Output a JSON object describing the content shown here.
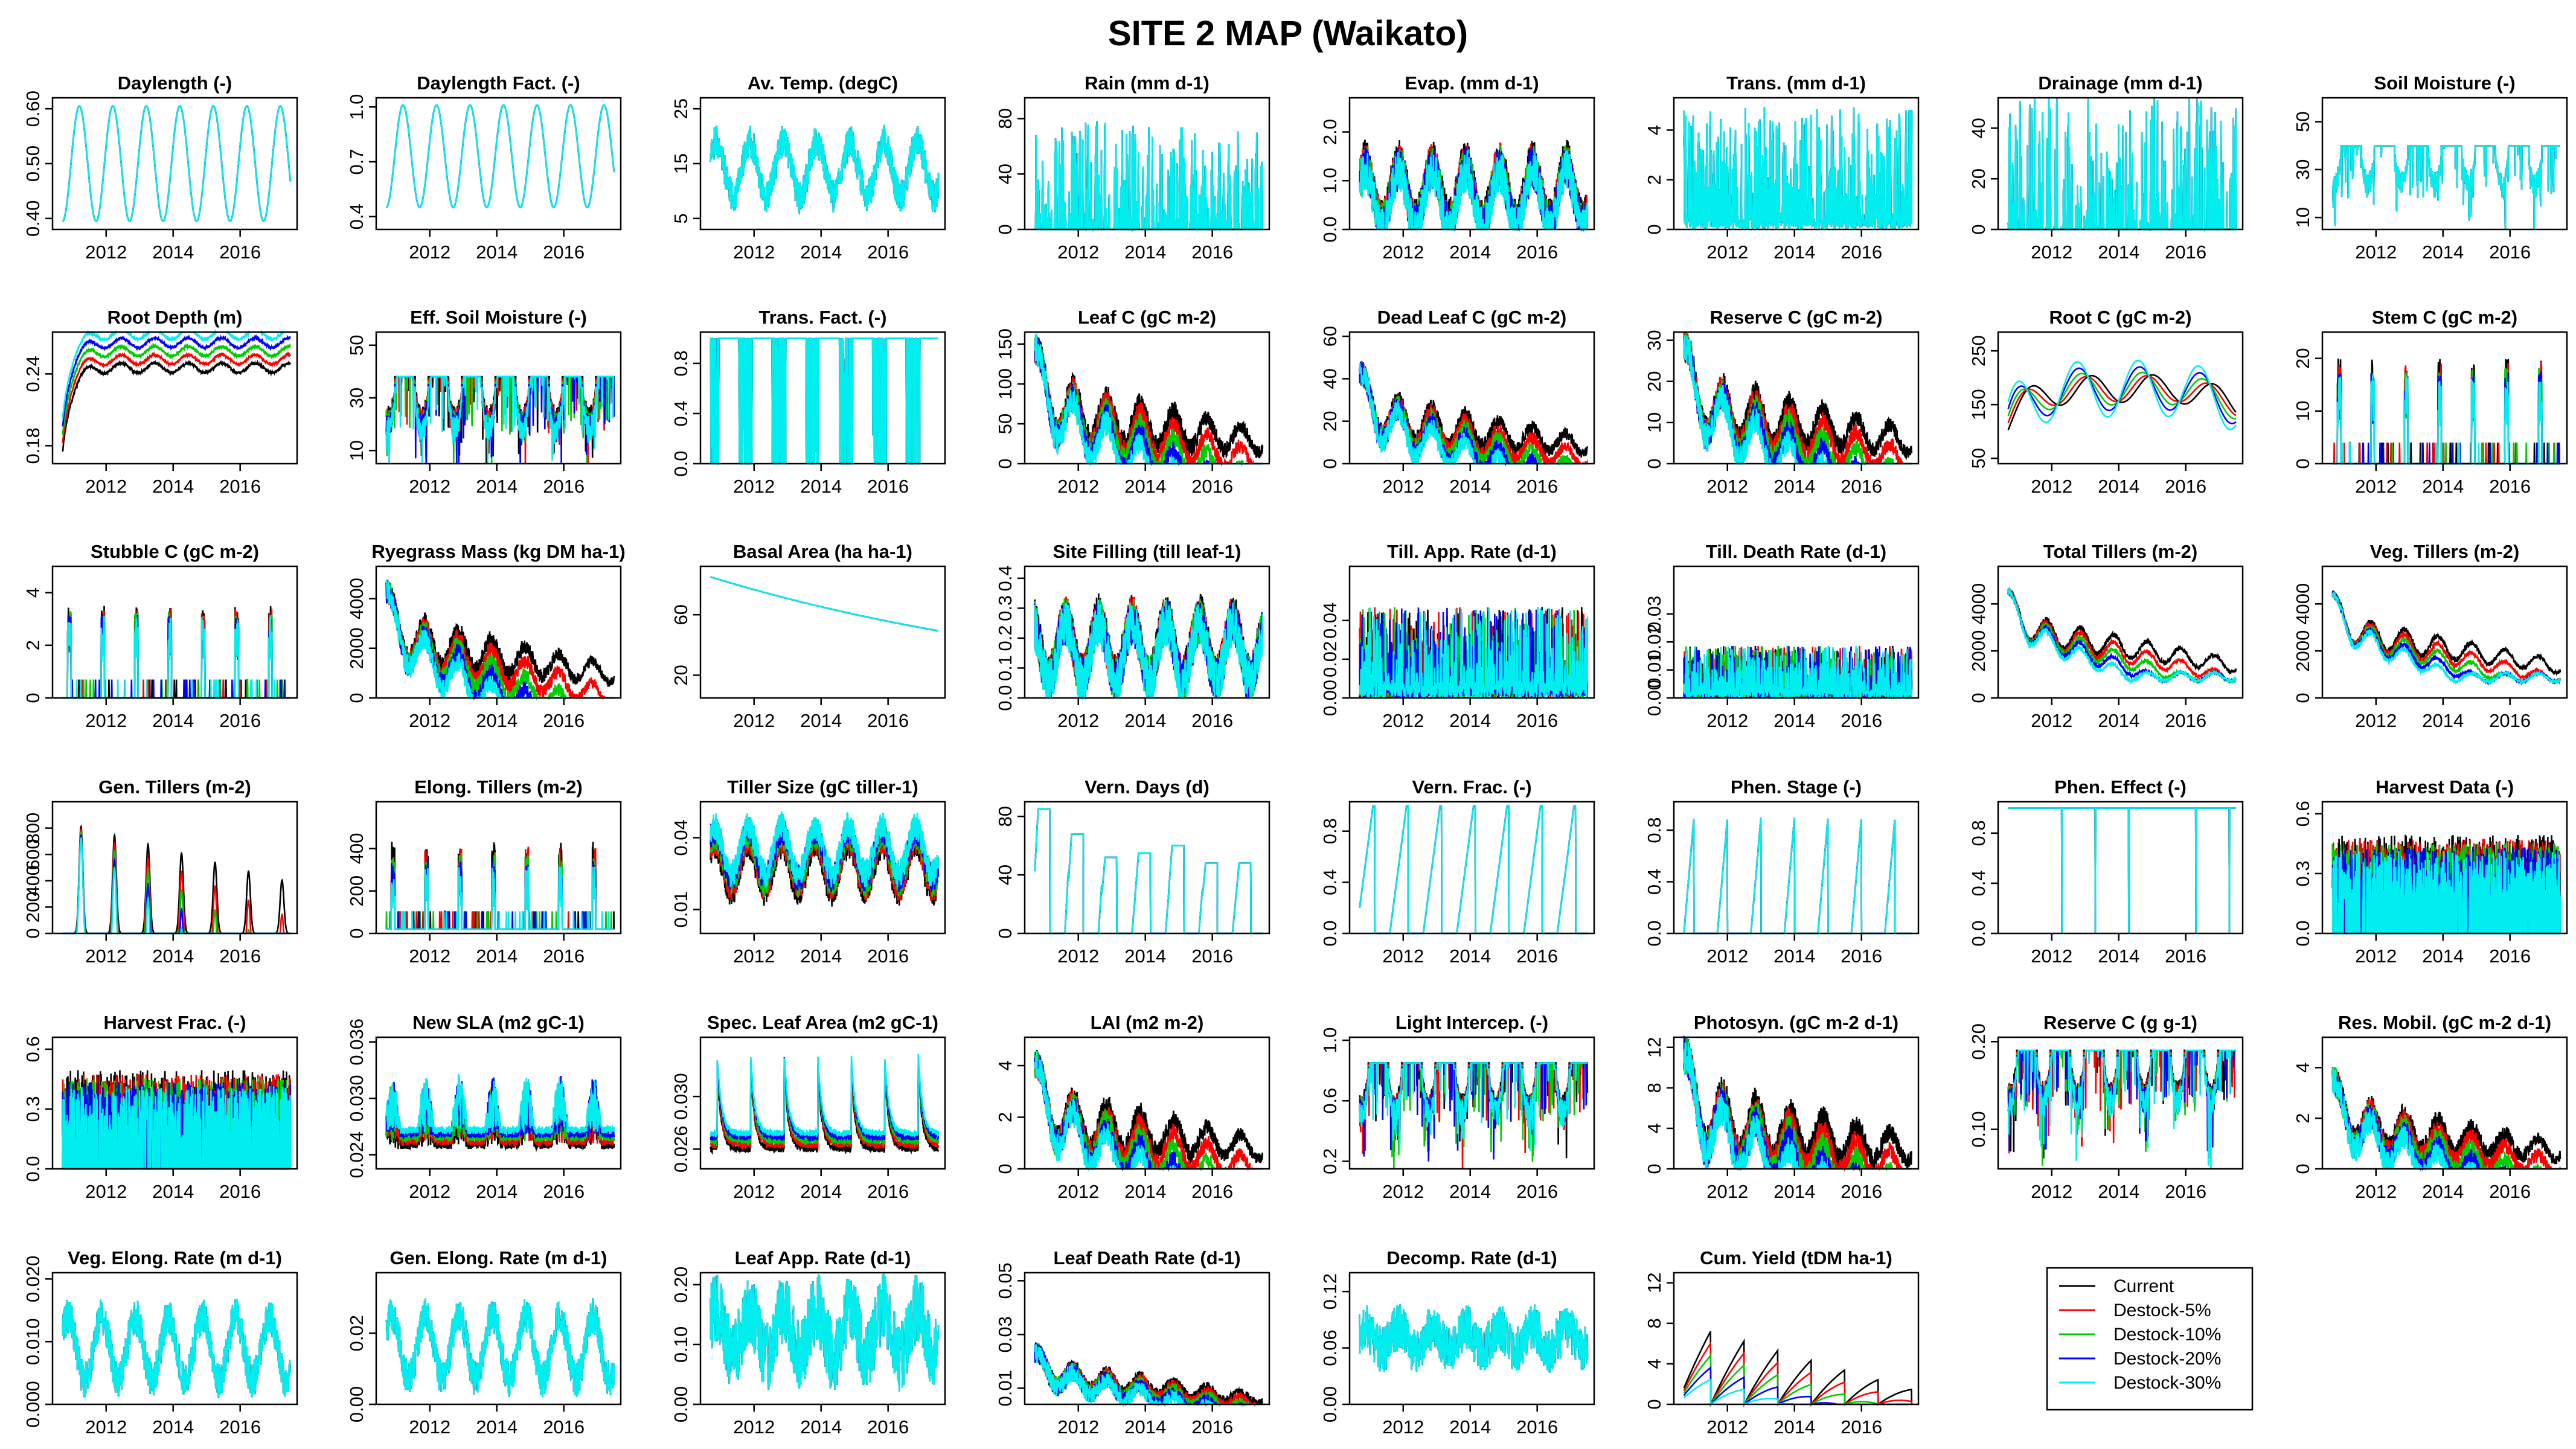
{
  "figure": {
    "title": "SITE 2 MAP (Waikato)",
    "x_range": [
      2010.4,
      2017.7
    ],
    "x_ticks": [
      "2012",
      "2014",
      "2016"
    ],
    "x_tick_values": [
      2012,
      2014,
      2016
    ]
  },
  "legend": {
    "placement": "bottom-right",
    "entries": [
      {
        "label": "Current",
        "color": "#000000"
      },
      {
        "label": "Destock-5%",
        "color": "#ff0000"
      },
      {
        "label": "Destock-10%",
        "color": "#00cd00"
      },
      {
        "label": "Destock-20%",
        "color": "#0000ff"
      },
      {
        "label": "Destock-30%",
        "color": "#00eeee"
      }
    ]
  },
  "chart_data": [
    {
      "type": "line",
      "title": "Daylength (-)",
      "ylim": [
        0.38,
        0.62
      ],
      "yticks": [
        "0.40",
        "0.50",
        "0.60"
      ],
      "ytick_values": [
        0.4,
        0.5,
        0.6
      ],
      "pattern": "seasonal",
      "base": 0.5,
      "amp": 0.105,
      "phase": 0,
      "spread": 0
    },
    {
      "type": "line",
      "title": "Daylength Fact. (-)",
      "ylim": [
        0.33,
        1.05
      ],
      "yticks": [
        "0.4",
        "0.7",
        "1.0"
      ],
      "ytick_values": [
        0.4,
        0.7,
        1.0
      ],
      "pattern": "seasonal",
      "base": 0.73,
      "amp": 0.28,
      "phase": 0,
      "spread": 0
    },
    {
      "type": "line",
      "title": "Av. Temp. (degC)",
      "ylim": [
        3,
        27
      ],
      "yticks": [
        "5",
        "15",
        "25"
      ],
      "ytick_values": [
        5,
        15,
        25
      ],
      "pattern": "seasonal_noisy",
      "base": 14,
      "amp": 5,
      "noise": 3,
      "phase": 0.5,
      "spread": 0
    },
    {
      "type": "line",
      "title": "Rain (mm d-1)",
      "ylim": [
        0,
        95
      ],
      "yticks": [
        "0",
        "40",
        "80"
      ],
      "ytick_values": [
        0,
        40,
        80
      ],
      "pattern": "spikes",
      "base": 0,
      "peak": 60,
      "density": 0.35,
      "spread": 0
    },
    {
      "type": "line",
      "title": "Evap. (mm d-1)",
      "ylim": [
        0,
        2.7
      ],
      "yticks": [
        "0.0",
        "1.0",
        "2.0"
      ],
      "ytick_values": [
        0,
        1,
        2
      ],
      "pattern": "seasonal_noisy",
      "base": 0.8,
      "amp": 0.6,
      "noise": 0.45,
      "phase": 0.5,
      "spread": 0.05
    },
    {
      "type": "line",
      "title": "Trans. (mm d-1)",
      "ylim": [
        0,
        5.3
      ],
      "yticks": [
        "0",
        "2",
        "4"
      ],
      "ytick_values": [
        0,
        2,
        4
      ],
      "pattern": "spikes",
      "base": 0.4,
      "peak": 3.5,
      "density": 0.45,
      "spread": 0
    },
    {
      "type": "line",
      "title": "Drainage (mm d-1)",
      "ylim": [
        0,
        52
      ],
      "yticks": [
        "0",
        "20",
        "40"
      ],
      "ytick_values": [
        0,
        20,
        40
      ],
      "pattern": "spikes",
      "base": 0,
      "peak": 42,
      "density": 0.25,
      "spread": 0
    },
    {
      "type": "line",
      "title": "Soil Moisture (-)",
      "ylim": [
        5,
        60
      ],
      "yticks": [
        "10",
        "30",
        "50"
      ],
      "ytick_values": [
        10,
        30,
        50
      ],
      "pattern": "dips",
      "base": 40,
      "dip": 22,
      "spread": 0
    },
    {
      "type": "line",
      "title": "Root Depth (m)",
      "ylim": [
        0.165,
        0.275
      ],
      "yticks": [
        "0.18",
        "0.24"
      ],
      "ytick_values": [
        0.18,
        0.24
      ],
      "pattern": "rootdepth",
      "base": 0.255,
      "spread": 0.007
    },
    {
      "type": "line",
      "title": "Eff. Soil Moisture (-)",
      "ylim": [
        5,
        55
      ],
      "yticks": [
        "10",
        "30",
        "50"
      ],
      "ytick_values": [
        10,
        30,
        50
      ],
      "pattern": "dips",
      "base": 38,
      "dip": 22,
      "spread": 1
    },
    {
      "type": "line",
      "title": "Trans. Fact. (-)",
      "ylim": [
        0,
        1.05
      ],
      "yticks": [
        "0.0",
        "0.4",
        "0.8"
      ],
      "ytick_values": [
        0,
        0.4,
        0.8
      ],
      "pattern": "blocks",
      "base": 1.0,
      "spread": 0
    },
    {
      "type": "line",
      "title": "Leaf C (gC m-2)",
      "ylim": [
        0,
        165
      ],
      "yticks": [
        "0",
        "50",
        "100",
        "150"
      ],
      "ytick_values": [
        0,
        50,
        100,
        150
      ],
      "pattern": "decline_noisy",
      "base": 70,
      "amp": 35,
      "noise": 20,
      "spread": 8
    },
    {
      "type": "line",
      "title": "Dead Leaf C (gC m-2)",
      "ylim": [
        0,
        62
      ],
      "yticks": [
        "0",
        "20",
        "40",
        "60"
      ],
      "ytick_values": [
        0,
        20,
        40,
        60
      ],
      "pattern": "decline_noisy",
      "base": 22,
      "amp": 10,
      "noise": 6,
      "spread": 2
    },
    {
      "type": "line",
      "title": "Reserve C (gC m-2)",
      "ylim": [
        0,
        32
      ],
      "yticks": [
        "0",
        "10",
        "20",
        "30"
      ],
      "ytick_values": [
        0,
        10,
        20,
        30
      ],
      "pattern": "decline_noisy",
      "base": 14,
      "amp": 7,
      "noise": 4,
      "spread": 1.5
    },
    {
      "type": "line",
      "title": "Root C (gC m-2)",
      "ylim": [
        40,
        285
      ],
      "yticks": [
        "50",
        "150",
        "250"
      ],
      "ytick_values": [
        50,
        150,
        250
      ],
      "pattern": "rootc",
      "base": 180,
      "spread": 14
    },
    {
      "type": "line",
      "title": "Stem C (gC m-2)",
      "ylim": [
        0,
        25
      ],
      "yticks": [
        "0",
        "10",
        "20"
      ],
      "ytick_values": [
        0,
        10,
        20
      ],
      "pattern": "annual_spikes",
      "base": 0,
      "peak": 20,
      "spread": 0.8
    },
    {
      "type": "line",
      "title": "Stubble C (gC m-2)",
      "ylim": [
        0,
        5
      ],
      "yticks": [
        "0",
        "2",
        "4"
      ],
      "ytick_values": [
        0,
        2,
        4
      ],
      "pattern": "annual_spikes",
      "base": 0,
      "peak": 3.5,
      "spread": 0.1
    },
    {
      "type": "line",
      "title": "Ryegrass Mass (kg DM ha-1)",
      "ylim": [
        0,
        5300
      ],
      "yticks": [
        "0",
        "2000",
        "4000"
      ],
      "ytick_values": [
        0,
        2000,
        4000
      ],
      "pattern": "decline_noisy",
      "base": 2400,
      "amp": 900,
      "noise": 500,
      "spread": 280
    },
    {
      "type": "line",
      "title": "Basal Area (ha ha-1)",
      "ylim": [
        5,
        92
      ],
      "yticks": [
        "20",
        "60"
      ],
      "ytick_values": [
        20,
        60
      ],
      "pattern": "basal",
      "base": 85,
      "spread": 0
    },
    {
      "type": "line",
      "title": "Site Filling (till leaf-1)",
      "ylim": [
        0,
        0.44
      ],
      "yticks": [
        "0.0",
        "0.1",
        "0.2",
        "0.3",
        "0.4"
      ],
      "ytick_values": [
        0,
        0.1,
        0.2,
        0.3,
        0.4
      ],
      "pattern": "seasonal_noisy",
      "base": 0.17,
      "amp": 0.1,
      "noise": 0.08,
      "phase": 2.1,
      "spread": 0.005
    },
    {
      "type": "line",
      "title": "Till. App. Rate (d-1)",
      "ylim": [
        0,
        0.068
      ],
      "yticks": [
        "0.00",
        "0.02",
        "0.04"
      ],
      "ytick_values": [
        0,
        0.02,
        0.04
      ],
      "pattern": "spikes",
      "base": 0.008,
      "peak": 0.03,
      "density": 0.35,
      "spread": 0.001
    },
    {
      "type": "line",
      "title": "Till. Death Rate (d-1)",
      "ylim": [
        0,
        0.047
      ],
      "yticks": [
        "0.00",
        "0.01",
        "0.02",
        "0.03"
      ],
      "ytick_values": [
        0,
        0.01,
        0.02,
        0.03
      ],
      "pattern": "spikes",
      "base": 0.003,
      "peak": 0.012,
      "density": 0.4,
      "spread": 0.0005
    },
    {
      "type": "line",
      "title": "Total Tillers (m-2)",
      "ylim": [
        0,
        5600
      ],
      "yticks": [
        "0",
        "2000",
        "4000"
      ],
      "ytick_values": [
        0,
        2000,
        4000
      ],
      "pattern": "tillers",
      "base": 3000,
      "spread": 380
    },
    {
      "type": "line",
      "title": "Veg. Tillers (m-2)",
      "ylim": [
        0,
        5600
      ],
      "yticks": [
        "0",
        "2000",
        "4000"
      ],
      "ytick_values": [
        0,
        2000,
        4000
      ],
      "pattern": "tillers",
      "base": 2900,
      "spread": 380
    },
    {
      "type": "line",
      "title": "Gen. Tillers (m-2)",
      "ylim": [
        0,
        1000
      ],
      "yticks": [
        "0",
        "200",
        "400",
        "600",
        "800"
      ],
      "ytick_values": [
        0,
        200,
        400,
        600,
        800
      ],
      "pattern": "annual_peaks",
      "base": 0,
      "peak": 850,
      "spread": 40
    },
    {
      "type": "line",
      "title": "Elong. Tillers (m-2)",
      "ylim": [
        0,
        620
      ],
      "yticks": [
        "0",
        "200",
        "400"
      ],
      "ytick_values": [
        0,
        200,
        400
      ],
      "pattern": "annual_spikes",
      "base": 20,
      "peak": 420,
      "spread": 30
    },
    {
      "type": "line",
      "title": "Tiller Size (gC tiller-1)",
      "ylim": [
        0,
        0.055
      ],
      "yticks": [
        "0.01",
        "0.04"
      ],
      "ytick_values": [
        0.01,
        0.04
      ],
      "pattern": "seasonal_noisy",
      "base": 0.027,
      "amp": 0.01,
      "noise": 0.006,
      "phase": 0.8,
      "spread": -0.002
    },
    {
      "type": "line",
      "title": "Vern. Days (d)",
      "ylim": [
        0,
        90
      ],
      "yticks": [
        "0",
        "40",
        "80"
      ],
      "ytick_values": [
        0,
        40,
        80
      ],
      "pattern": "vern",
      "base": 0,
      "spread": 0
    },
    {
      "type": "line",
      "title": "Vern. Frac. (-)",
      "ylim": [
        0,
        1.03
      ],
      "yticks": [
        "0.0",
        "0.4",
        "0.8"
      ],
      "ytick_values": [
        0,
        0.4,
        0.8
      ],
      "pattern": "vernfrac",
      "base": 0,
      "spread": 0
    },
    {
      "type": "line",
      "title": "Phen. Stage (-)",
      "ylim": [
        0,
        1.02
      ],
      "yticks": [
        "0.0",
        "0.4",
        "0.8"
      ],
      "ytick_values": [
        0,
        0.4,
        0.8
      ],
      "pattern": "sawtooth",
      "base": 0,
      "spread": 0
    },
    {
      "type": "line",
      "title": "Phen. Effect (-)",
      "ylim": [
        0,
        1.05
      ],
      "yticks": [
        "0.0",
        "0.4",
        "0.8"
      ],
      "ytick_values": [
        0,
        0.4,
        0.8
      ],
      "pattern": "pheneffect",
      "base": 1,
      "spread": 0
    },
    {
      "type": "line",
      "title": "Harvest Data (-)",
      "ylim": [
        0,
        0.66
      ],
      "yticks": [
        "0.0",
        "0.3",
        "0.6"
      ],
      "ytick_values": [
        0,
        0.3,
        0.6
      ],
      "pattern": "harvest",
      "base": 0.45,
      "spread": 0.02
    },
    {
      "type": "line",
      "title": "Harvest Frac. (-)",
      "ylim": [
        0,
        0.66
      ],
      "yticks": [
        "0.0",
        "0.3",
        "0.6"
      ],
      "ytick_values": [
        0,
        0.3,
        0.6
      ],
      "pattern": "harvest",
      "base": 0.45,
      "spread": 0.02
    },
    {
      "type": "line",
      "title": "New SLA (m2 gC-1)",
      "ylim": [
        0.0225,
        0.0365
      ],
      "yticks": [
        "0.024",
        "0.030",
        "0.036"
      ],
      "ytick_values": [
        0.024,
        0.03,
        0.036
      ],
      "pattern": "sla",
      "base": 0.025,
      "spread": 0.0004
    },
    {
      "type": "line",
      "title": "Spec. Leaf Area (m2 gC-1)",
      "ylim": [
        0.0245,
        0.0345
      ],
      "yticks": [
        "0.026",
        "0.030"
      ],
      "ytick_values": [
        0.026,
        0.03
      ],
      "pattern": "sla2",
      "base": 0.026,
      "spread": 0.0003
    },
    {
      "type": "line",
      "title": "LAI (m2 m-2)",
      "ylim": [
        0,
        5.1
      ],
      "yticks": [
        "0",
        "2",
        "4"
      ],
      "ytick_values": [
        0,
        2,
        4
      ],
      "pattern": "decline_noisy",
      "base": 2,
      "amp": 1,
      "noise": 0.6,
      "spread": 0.25
    },
    {
      "type": "line",
      "title": "Light Intercep. (-)",
      "ylim": [
        0.15,
        1.02
      ],
      "yticks": [
        "0.2",
        "0.6",
        "1.0"
      ],
      "ytick_values": [
        0.2,
        0.6,
        1.0
      ],
      "pattern": "dips",
      "base": 0.85,
      "dip": 0.4,
      "spread": 0.01
    },
    {
      "type": "line",
      "title": "Photosyn. (gC m-2 d-1)",
      "ylim": [
        0,
        13
      ],
      "yticks": [
        "0",
        "4",
        "8",
        "12"
      ],
      "ytick_values": [
        0,
        4,
        8,
        12
      ],
      "pattern": "decline_noisy",
      "base": 5,
      "amp": 3,
      "noise": 2,
      "spread": 0.6
    },
    {
      "type": "line",
      "title": "Reserve C (g g-1)",
      "ylim": [
        0.055,
        0.205
      ],
      "yticks": [
        "0.10",
        "0.20"
      ],
      "ytick_values": [
        0.1,
        0.2
      ],
      "pattern": "dips",
      "base": 0.19,
      "dip": 0.07,
      "spread": 0.002
    },
    {
      "type": "line",
      "title": "Res. Mobil. (gC m-2 d-1)",
      "ylim": [
        0,
        5.2
      ],
      "yticks": [
        "0",
        "2",
        "4"
      ],
      "ytick_values": [
        0,
        2,
        4
      ],
      "pattern": "decline_noisy",
      "base": 1.8,
      "amp": 0.8,
      "noise": 0.6,
      "spread": 0.2
    },
    {
      "type": "line",
      "title": "Veg. Elong. Rate (m d-1)",
      "ylim": [
        0,
        0.021
      ],
      "yticks": [
        "0.000",
        "0.010",
        "0.020"
      ],
      "ytick_values": [
        0,
        0.01,
        0.02
      ],
      "pattern": "seasonal_noisy",
      "base": 0.009,
      "amp": 0.005,
      "noise": 0.003,
      "phase": 0.5,
      "spread": 0
    },
    {
      "type": "line",
      "title": "Gen. Elong. Rate (m d-1)",
      "ylim": [
        0,
        0.037
      ],
      "yticks": [
        "0.00",
        "0.02"
      ],
      "ytick_values": [
        0,
        0.02
      ],
      "pattern": "seasonal_noisy",
      "base": 0.016,
      "amp": 0.009,
      "noise": 0.005,
      "phase": 0.5,
      "spread": 0
    },
    {
      "type": "line",
      "title": "Leaf App. Rate (d-1)",
      "ylim": [
        0,
        0.22
      ],
      "yticks": [
        "0.00",
        "0.10",
        "0.20"
      ],
      "ytick_values": [
        0,
        0.1,
        0.2
      ],
      "pattern": "seasonal_noisy",
      "base": 0.12,
      "amp": 0.04,
      "noise": 0.06,
      "phase": 0.5,
      "spread": 0
    },
    {
      "type": "line",
      "title": "Leaf Death Rate (d-1)",
      "ylim": [
        0.004,
        0.053
      ],
      "yticks": [
        "0.01",
        "0.03",
        "0.05"
      ],
      "ytick_values": [
        0.01,
        0.03,
        0.05
      ],
      "pattern": "decline_noisy",
      "base": 0.015,
      "amp": 0.004,
      "noise": 0.004,
      "spread": 0.0006
    },
    {
      "type": "line",
      "title": "Decomp. Rate (d-1)",
      "ylim": [
        0,
        0.14
      ],
      "yticks": [
        "0.00",
        "0.06",
        "0.12"
      ],
      "ytick_values": [
        0,
        0.06,
        0.12
      ],
      "pattern": "seasonal_noisy",
      "base": 0.07,
      "amp": 0.012,
      "noise": 0.025,
      "phase": 0.5,
      "spread": 0
    },
    {
      "type": "line",
      "title": "Cum. Yield (tDM ha-1)",
      "ylim": [
        0,
        13
      ],
      "yticks": [
        "0",
        "4",
        "8",
        "12"
      ],
      "ytick_values": [
        0,
        4,
        8,
        12
      ],
      "pattern": "cumyield",
      "base": 0,
      "spread": 1
    }
  ]
}
